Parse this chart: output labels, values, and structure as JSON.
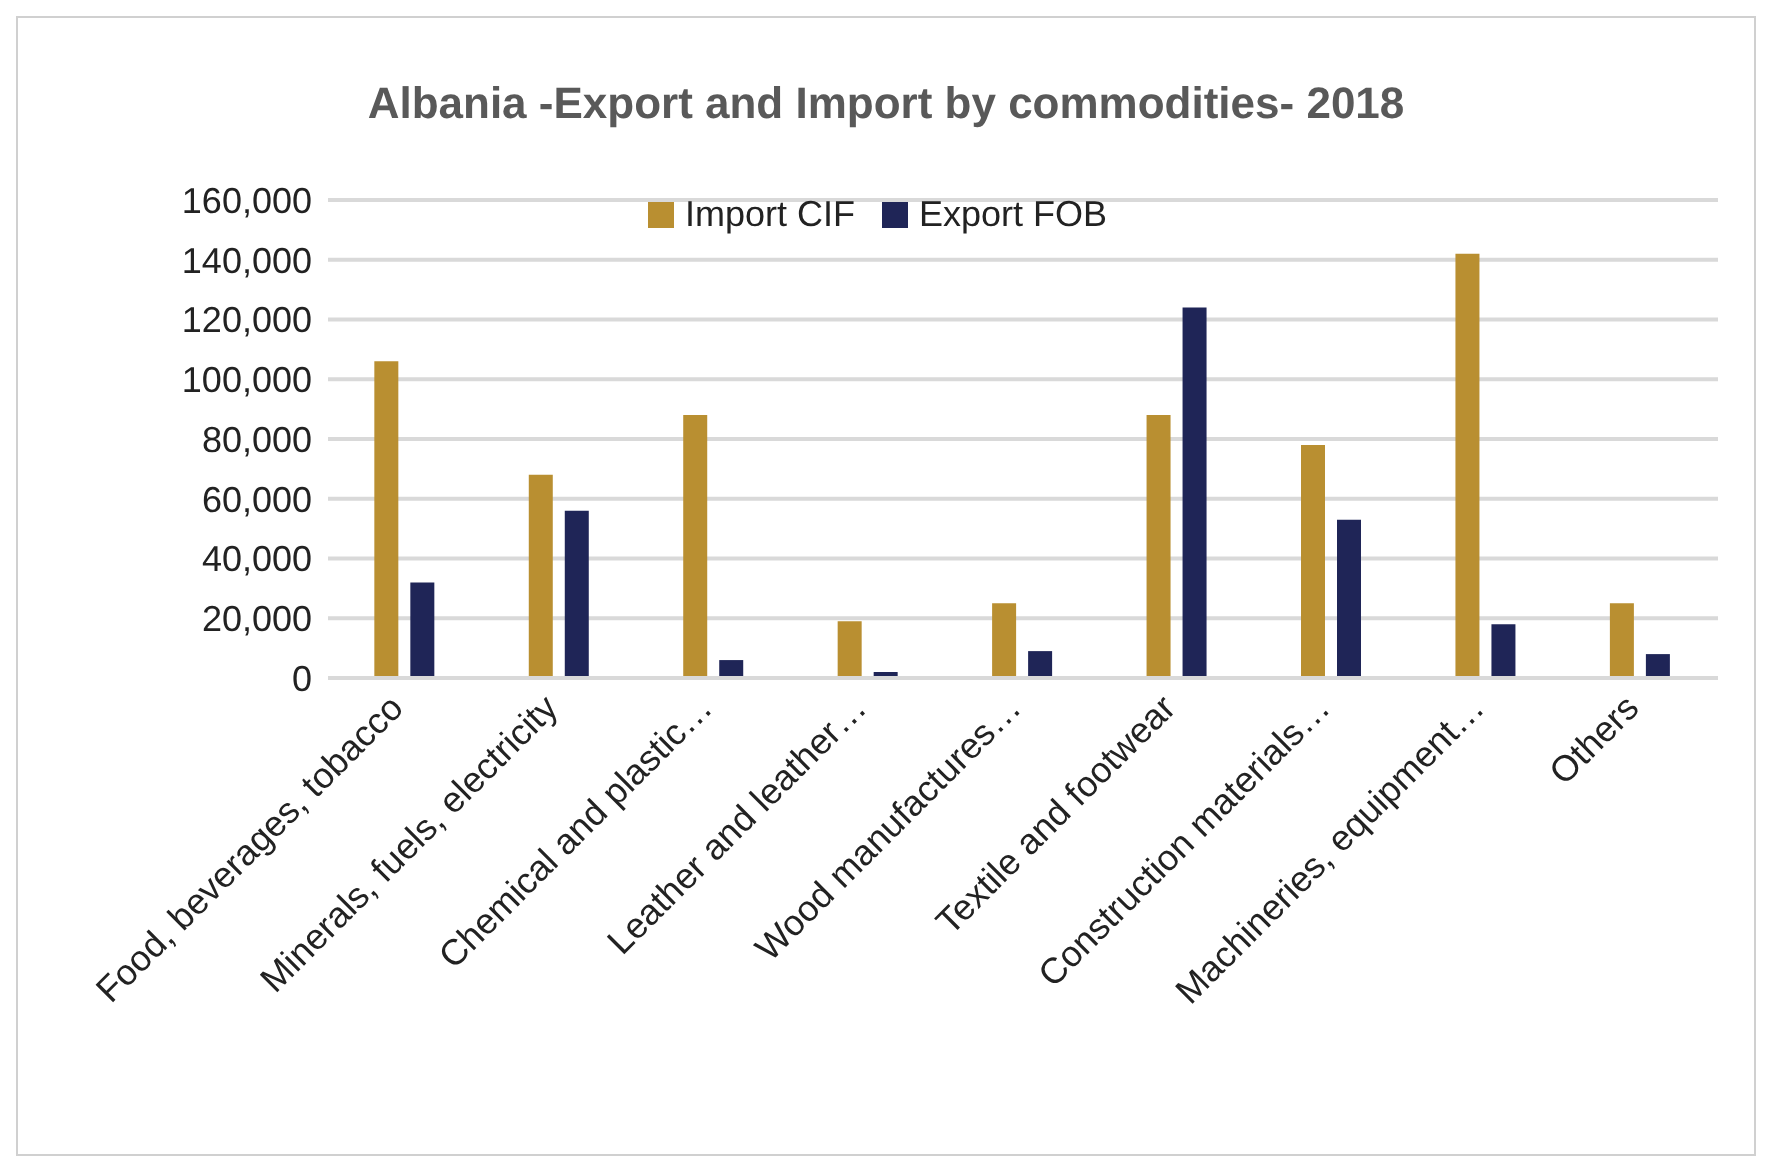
{
  "chart_data": {
    "type": "bar",
    "title": "Albania -Export and Import by commodities- 2018",
    "categories": [
      "Food, beverages, tobacco",
      "Minerals, fuels, electricity",
      "Chemical and plastic…",
      "Leather and leather…",
      "Wood manufactures…",
      "Textile and footwear",
      "Construction materials…",
      "Machineries, equipment…",
      "Others"
    ],
    "series": [
      {
        "name": "Import CIF",
        "color": "#b98f31",
        "values": [
          106000,
          68000,
          88000,
          19000,
          25000,
          88000,
          78000,
          142000,
          25000
        ]
      },
      {
        "name": "Export FOB",
        "color": "#1f2557",
        "values": [
          32000,
          56000,
          6000,
          2000,
          9000,
          124000,
          53000,
          18000,
          8000
        ]
      }
    ],
    "ylim": [
      0,
      160000
    ],
    "yticks": [
      0,
      {
        "value": 20000,
        "label": "20,000"
      },
      {
        "value": 40000,
        "label": "40,000"
      },
      {
        "value": 60000,
        "label": "60,000"
      },
      {
        "value": 80000,
        "label": "80,000"
      },
      {
        "value": 100000,
        "label": "100,000"
      },
      {
        "value": 120000,
        "label": "120,000"
      },
      {
        "value": 140000,
        "label": "140,000"
      },
      {
        "value": 160000,
        "label": "160,000"
      }
    ],
    "grid": "y",
    "legend": "top"
  }
}
